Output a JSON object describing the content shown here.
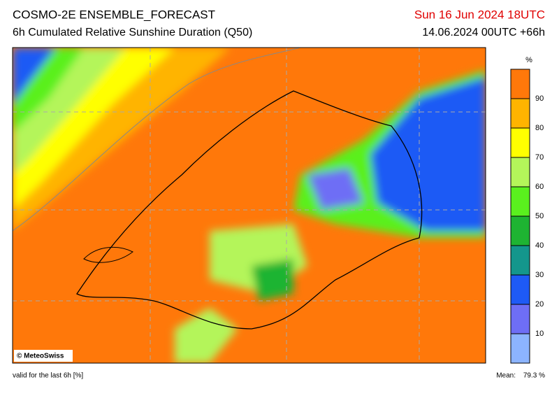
{
  "header": {
    "title": "COSMO-2E ENSEMBLE_FORECAST",
    "subtitle": "6h Cumulated Relative Sunshine Duration (Q50)",
    "valid_time": "Sun 16 Jun 2024 18UTC",
    "run": "14.06.2024 00UTC +66h"
  },
  "colorbar": {
    "unit": "%",
    "range": [
      0,
      100
    ],
    "ticks": [
      10,
      20,
      30,
      40,
      50,
      60,
      70,
      80,
      90
    ],
    "colors": [
      "#8cb4ff",
      "#6e6ef5",
      "#1e5af5",
      "#14968c",
      "#1eb432",
      "#5af01e",
      "#b4f55a",
      "#ffff00",
      "#ffb400",
      "#ff780a"
    ]
  },
  "map": {
    "credit": "© MeteoSwiss"
  },
  "footer": {
    "note": "valid for the last 6h [%]",
    "mean_label": "Mean:",
    "mean": "79.3 %"
  }
}
